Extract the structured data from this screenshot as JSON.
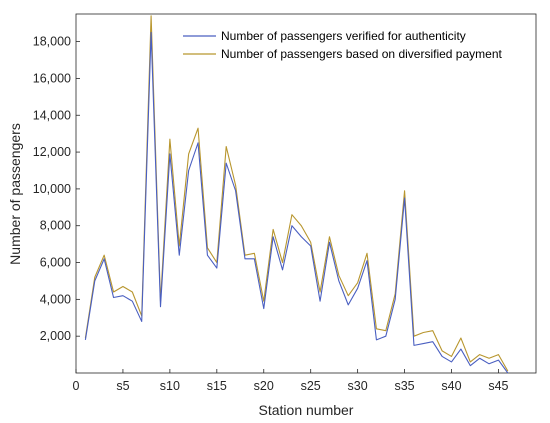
{
  "chart_data": {
    "type": "line",
    "xlabel": "Station number",
    "ylabel": "Number of passengers",
    "xlim": [
      0,
      49
    ],
    "ylim": [
      0,
      19500
    ],
    "x_ticks": [
      {
        "value": 0,
        "label": "0"
      },
      {
        "value": 5,
        "label": "s5"
      },
      {
        "value": 10,
        "label": "s10"
      },
      {
        "value": 15,
        "label": "s15"
      },
      {
        "value": 20,
        "label": "s20"
      },
      {
        "value": 25,
        "label": "s25"
      },
      {
        "value": 30,
        "label": "s30"
      },
      {
        "value": 35,
        "label": "s35"
      },
      {
        "value": 40,
        "label": "s40"
      },
      {
        "value": 45,
        "label": "s45"
      }
    ],
    "y_ticks": [
      {
        "value": 2000,
        "label": "2,000"
      },
      {
        "value": 4000,
        "label": "4,000"
      },
      {
        "value": 6000,
        "label": "6,000"
      },
      {
        "value": 8000,
        "label": "8,000"
      },
      {
        "value": 10000,
        "label": "10,000"
      },
      {
        "value": 12000,
        "label": "12,000"
      },
      {
        "value": 14000,
        "label": "14,000"
      },
      {
        "value": 16000,
        "label": "16,000"
      },
      {
        "value": 18000,
        "label": "18,000"
      }
    ],
    "x": [
      1,
      2,
      3,
      4,
      5,
      6,
      7,
      8,
      9,
      10,
      11,
      12,
      13,
      14,
      15,
      16,
      17,
      18,
      19,
      20,
      21,
      22,
      23,
      24,
      25,
      26,
      27,
      28,
      29,
      30,
      31,
      32,
      33,
      34,
      35,
      36,
      37,
      38,
      39,
      40,
      41,
      42,
      43,
      44,
      45,
      46
    ],
    "grid": false,
    "legend_position": "top-right",
    "series": [
      {
        "name": "Number of passengers verified for authenticity",
        "color": "#4a5fc1",
        "values": [
          1800,
          5000,
          6200,
          4100,
          4200,
          3900,
          2800,
          18500,
          3600,
          11900,
          6400,
          11000,
          12500,
          6400,
          5700,
          11400,
          9900,
          6200,
          6200,
          3500,
          7400,
          5600,
          8000,
          7400,
          6900,
          3900,
          7100,
          5000,
          3700,
          4600,
          6100,
          1800,
          2000,
          4000,
          9500,
          1500,
          1600,
          1700,
          900,
          600,
          1300,
          400,
          800,
          500,
          700,
          0
        ]
      },
      {
        "name": "Number of passengers based on diversified payment",
        "color": "#b8962e",
        "values": [
          1900,
          5200,
          6400,
          4400,
          4700,
          4400,
          3100,
          19400,
          3900,
          12700,
          6900,
          11900,
          13300,
          6800,
          6000,
          12300,
          10200,
          6400,
          6500,
          3900,
          7800,
          6000,
          8600,
          8000,
          7100,
          4400,
          7400,
          5300,
          4200,
          4900,
          6500,
          2400,
          2300,
          4300,
          9900,
          2000,
          2200,
          2300,
          1200,
          900,
          1900,
          600,
          1000,
          800,
          1000,
          100
        ]
      }
    ]
  }
}
